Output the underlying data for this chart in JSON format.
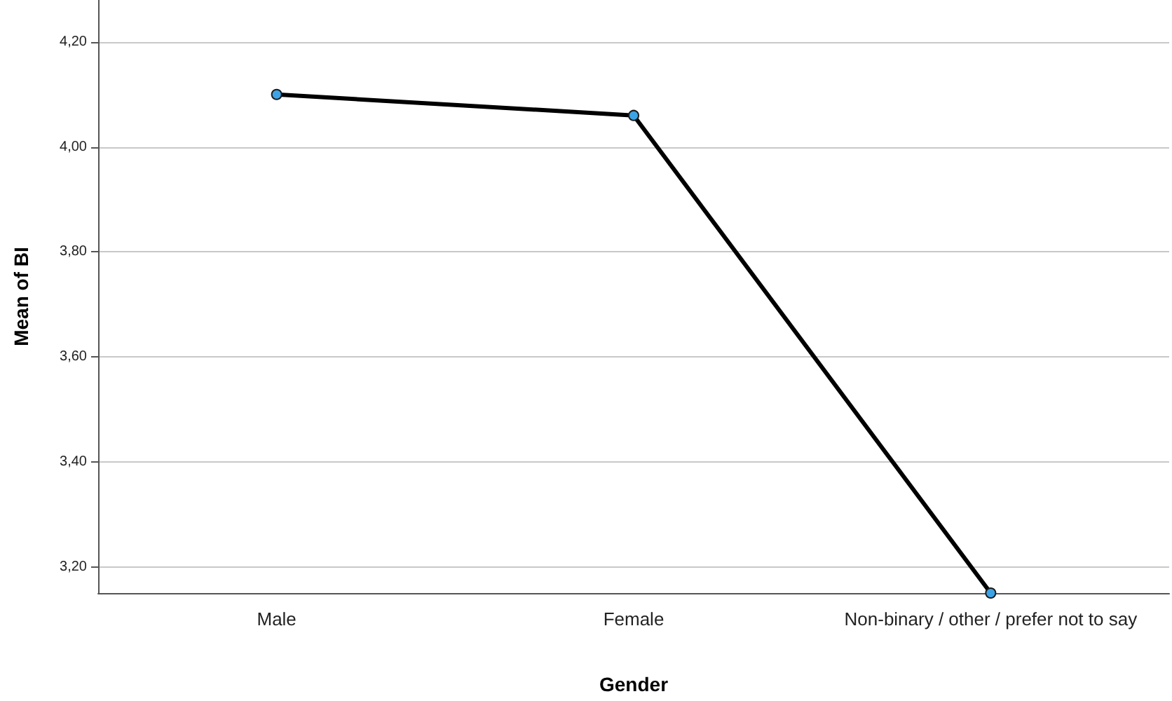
{
  "chart_data": {
    "type": "line",
    "xlabel": "Gender",
    "ylabel": "Mean of BI",
    "categories": [
      "Male",
      "Female",
      "Non-binary / other / prefer not to say"
    ],
    "series": [
      {
        "color": "#000000",
        "values": [
          4.1,
          4.06,
          3.15
        ]
      }
    ],
    "ylim": [
      3.15,
      4.28
    ],
    "yticks": [
      {
        "value": 3.2,
        "label": "3,20"
      },
      {
        "value": 3.4,
        "label": "3,40"
      },
      {
        "value": 3.6,
        "label": "3,60"
      },
      {
        "value": 3.8,
        "label": "3,80"
      },
      {
        "value": 4.0,
        "label": "4,00"
      },
      {
        "value": 4.2,
        "label": "4,20"
      }
    ],
    "grid": "y",
    "marker": "circle",
    "line_style": "solid"
  }
}
